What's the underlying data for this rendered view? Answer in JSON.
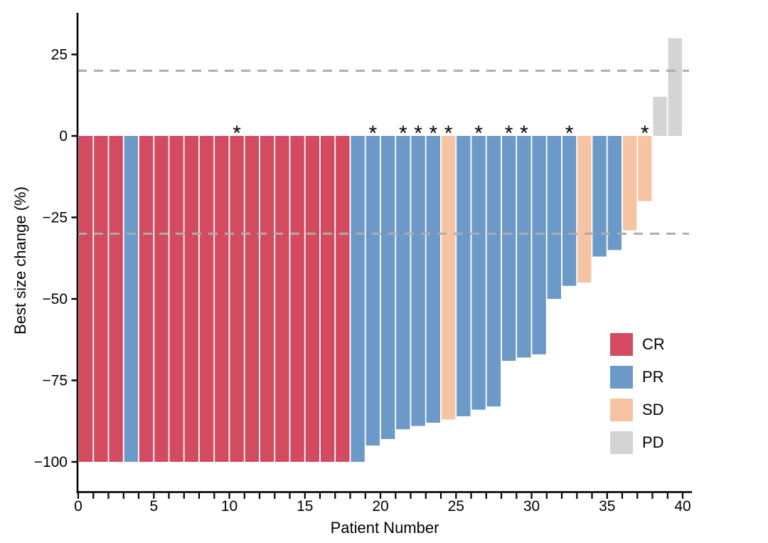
{
  "chart_data": {
    "type": "bar",
    "subtype": "waterfall",
    "title": "",
    "xlabel": "Patient Number",
    "ylabel": "Best size change (%)",
    "x_axis": {
      "min": 0,
      "max": 40,
      "major_ticks": [
        0,
        5,
        10,
        15,
        20,
        25,
        30,
        35,
        40
      ],
      "minor_tick_every": 1
    },
    "y_axis": {
      "ticks": [
        25,
        0,
        -25,
        -50,
        -75,
        -100
      ],
      "tick_labels": [
        "25",
        "0",
        "−25",
        "−50",
        "−75",
        "−100"
      ],
      "range": [
        -107,
        37
      ]
    },
    "reference_lines": [
      {
        "y": 20,
        "style": "dashed",
        "color": "#adadad"
      },
      {
        "y": -30,
        "style": "dashed",
        "color": "#adadad"
      }
    ],
    "annotation_symbol": "*",
    "legend": {
      "position": "right-middle",
      "entries": [
        {
          "label": "CR",
          "color": "#d34a61"
        },
        {
          "label": "PR",
          "color": "#6b9ac8"
        },
        {
          "label": "SD",
          "color": "#f7c4a3"
        },
        {
          "label": "PD",
          "color": "#d4d4d4"
        }
      ]
    },
    "patients": [
      {
        "patient": 1,
        "value": -100,
        "response": "CR",
        "asterisk": false
      },
      {
        "patient": 2,
        "value": -100,
        "response": "CR",
        "asterisk": false
      },
      {
        "patient": 3,
        "value": -100,
        "response": "CR",
        "asterisk": false
      },
      {
        "patient": 4,
        "value": -100,
        "response": "PR",
        "asterisk": false
      },
      {
        "patient": 5,
        "value": -100,
        "response": "CR",
        "asterisk": false
      },
      {
        "patient": 6,
        "value": -100,
        "response": "CR",
        "asterisk": false
      },
      {
        "patient": 7,
        "value": -100,
        "response": "CR",
        "asterisk": false
      },
      {
        "patient": 8,
        "value": -100,
        "response": "CR",
        "asterisk": false
      },
      {
        "patient": 9,
        "value": -100,
        "response": "CR",
        "asterisk": false
      },
      {
        "patient": 10,
        "value": -100,
        "response": "CR",
        "asterisk": false
      },
      {
        "patient": 11,
        "value": -100,
        "response": "CR",
        "asterisk": true
      },
      {
        "patient": 12,
        "value": -100,
        "response": "CR",
        "asterisk": false
      },
      {
        "patient": 13,
        "value": -100,
        "response": "CR",
        "asterisk": false
      },
      {
        "patient": 14,
        "value": -100,
        "response": "CR",
        "asterisk": false
      },
      {
        "patient": 15,
        "value": -100,
        "response": "CR",
        "asterisk": false
      },
      {
        "patient": 16,
        "value": -100,
        "response": "CR",
        "asterisk": false
      },
      {
        "patient": 17,
        "value": -100,
        "response": "CR",
        "asterisk": false
      },
      {
        "patient": 18,
        "value": -100,
        "response": "CR",
        "asterisk": false
      },
      {
        "patient": 19,
        "value": -100,
        "response": "PR",
        "asterisk": false
      },
      {
        "patient": 20,
        "value": -95,
        "response": "PR",
        "asterisk": true
      },
      {
        "patient": 21,
        "value": -93,
        "response": "PR",
        "asterisk": false
      },
      {
        "patient": 22,
        "value": -90,
        "response": "PR",
        "asterisk": true
      },
      {
        "patient": 23,
        "value": -89,
        "response": "PR",
        "asterisk": true
      },
      {
        "patient": 24,
        "value": -88,
        "response": "PR",
        "asterisk": true
      },
      {
        "patient": 25,
        "value": -87,
        "response": "SD",
        "asterisk": true
      },
      {
        "patient": 26,
        "value": -86,
        "response": "PR",
        "asterisk": false
      },
      {
        "patient": 27,
        "value": -84,
        "response": "PR",
        "asterisk": true
      },
      {
        "patient": 28,
        "value": -83,
        "response": "PR",
        "asterisk": false
      },
      {
        "patient": 29,
        "value": -69,
        "response": "PR",
        "asterisk": true
      },
      {
        "patient": 30,
        "value": -68,
        "response": "PR",
        "asterisk": true
      },
      {
        "patient": 31,
        "value": -67,
        "response": "PR",
        "asterisk": false
      },
      {
        "patient": 32,
        "value": -50,
        "response": "PR",
        "asterisk": false
      },
      {
        "patient": 33,
        "value": -46,
        "response": "PR",
        "asterisk": true
      },
      {
        "patient": 34,
        "value": -45,
        "response": "SD",
        "asterisk": false
      },
      {
        "patient": 35,
        "value": -37,
        "response": "PR",
        "asterisk": false
      },
      {
        "patient": 36,
        "value": -35,
        "response": "PR",
        "asterisk": false
      },
      {
        "patient": 37,
        "value": -29,
        "response": "SD",
        "asterisk": false
      },
      {
        "patient": 38,
        "value": -20,
        "response": "SD",
        "asterisk": true
      },
      {
        "patient": 39,
        "value": 12,
        "response": "PD",
        "asterisk": false
      },
      {
        "patient": 40,
        "value": 30,
        "response": "PD",
        "asterisk": false
      }
    ]
  }
}
